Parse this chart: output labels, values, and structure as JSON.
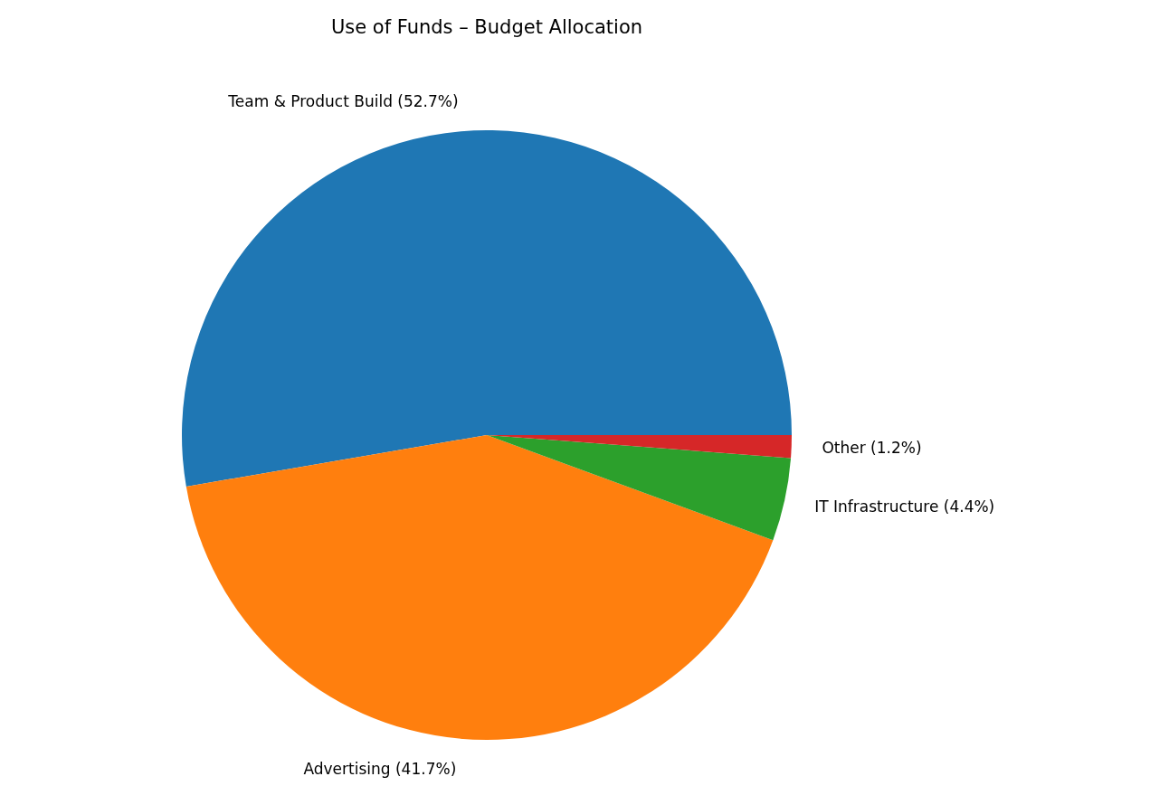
{
  "chart_data": {
    "type": "pie",
    "title": "Use of Funds – Budget Allocation",
    "categories": [
      "Team & Product Build",
      "Advertising",
      "IT Infrastructure",
      "Other"
    ],
    "values": [
      52.7,
      41.7,
      4.4,
      1.2
    ],
    "colors": [
      "#1f77b4",
      "#ff7f0e",
      "#2ca02c",
      "#d62728"
    ],
    "value_labels": [
      "(52.7%)",
      "(41.7%)",
      "(4.4%)",
      "(1.2%)"
    ]
  }
}
